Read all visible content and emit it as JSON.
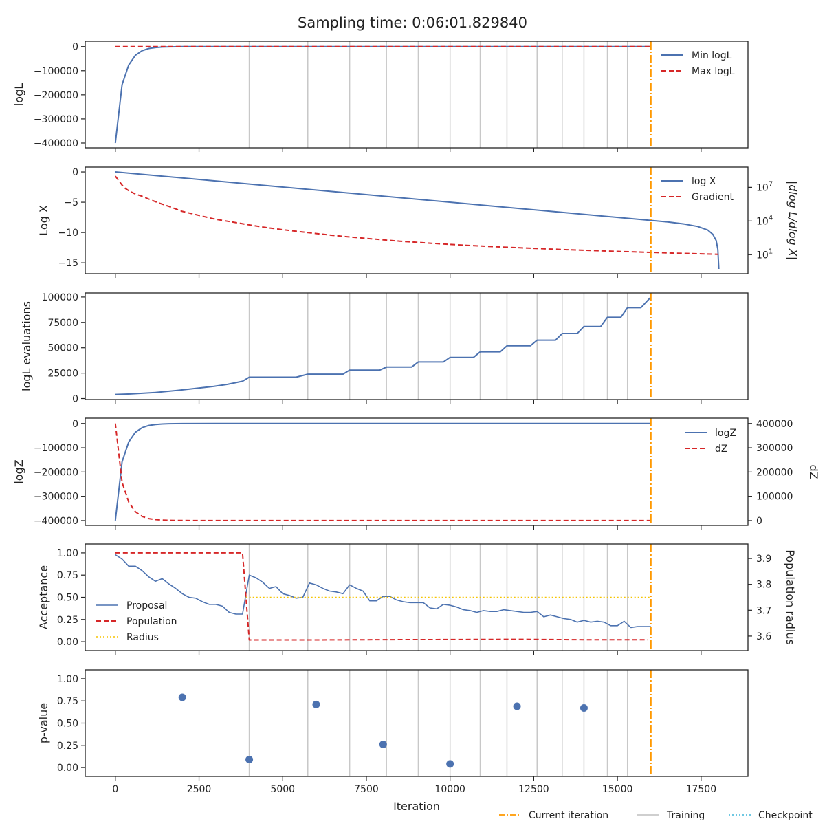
{
  "figure": {
    "title": "Sampling time: 0:06:01.829840",
    "xlabel": "Iteration"
  },
  "colors": {
    "blue": "#4c72b0",
    "red": "#d62728",
    "orange": "#ff9900",
    "yellow": "#f5c400",
    "cyan": "#5bc0de",
    "grey": "#c8c8c8"
  },
  "chart_data": [
    {
      "type": "line",
      "ylabel": "logL",
      "xlim": [
        -900,
        18900
      ],
      "ylim": [
        -420000,
        22000
      ],
      "yticks": [
        0,
        -100000,
        -200000,
        -300000,
        -400000
      ],
      "ytick_labels": [
        "0",
        "−100000",
        "−200000",
        "−300000",
        "−400000"
      ],
      "training_lines": [
        4000,
        5750,
        7000,
        8100,
        9050,
        10000,
        10900,
        11700,
        12600,
        13350,
        14000,
        14700,
        15300
      ],
      "current_iteration": 16000,
      "series": [
        {
          "name": "Min logL",
          "x": [
            0,
            200,
            400,
            600,
            800,
            1000,
            1200,
            1400,
            1600,
            2000,
            3000,
            16000
          ],
          "values": [
            -400000,
            -158000,
            -76000,
            -36000,
            -17000,
            -8000,
            -4000,
            -2000,
            -1000,
            -300,
            0,
            0
          ]
        },
        {
          "name": "Max logL",
          "x": [
            0,
            16000
          ],
          "values": [
            0,
            0
          ]
        }
      ],
      "legend": [
        "Min logL",
        "Max logL"
      ],
      "legend_position": "top-right"
    },
    {
      "type": "line",
      "ylabel": "Log X",
      "ylabel_right": "|dlog L/dlog X|",
      "xlim": [
        -900,
        18900
      ],
      "ylim": [
        -16.8,
        0.8
      ],
      "yticks": [
        0,
        -5,
        -10,
        -15
      ],
      "ytick_labels": [
        "0",
        "−5",
        "−10",
        "−15"
      ],
      "right_log_range": [
        -0.7,
        8.8
      ],
      "right_ticks": [
        {
          "value": 1,
          "base": "10",
          "exp": "1"
        },
        {
          "value": 4,
          "base": "10",
          "exp": "4"
        },
        {
          "value": 7,
          "base": "10",
          "exp": "7"
        }
      ],
      "current_iteration": 16000,
      "series": [
        {
          "name": "log X",
          "x": [
            0,
            16000,
            16500,
            17000,
            17400,
            17700,
            17850,
            17950,
            18000,
            18030
          ],
          "values": [
            0,
            -8.0,
            -8.25,
            -8.6,
            -9.0,
            -9.6,
            -10.3,
            -11.3,
            -12.8,
            -16.0
          ]
        },
        {
          "name": "Gradient",
          "axis": "right_log10",
          "x": [
            0,
            100,
            200,
            300,
            400,
            600,
            800,
            1000,
            1300,
            1600,
            2000,
            2500,
            3000,
            3500,
            4000,
            4500,
            5000,
            5500,
            6000,
            6500,
            7000,
            7500,
            8000,
            8500,
            9000,
            9500,
            10000,
            10500,
            11000,
            11500,
            12000,
            12500,
            13000,
            13500,
            14000,
            14500,
            15000,
            15500,
            16000,
            16500,
            17000,
            17500,
            18000
          ],
          "values": [
            8.0,
            7.6,
            7.2,
            6.9,
            6.7,
            6.4,
            6.2,
            5.95,
            5.6,
            5.3,
            4.85,
            4.5,
            4.15,
            3.9,
            3.65,
            3.42,
            3.22,
            3.05,
            2.88,
            2.72,
            2.58,
            2.45,
            2.32,
            2.2,
            2.1,
            2.0,
            1.92,
            1.83,
            1.76,
            1.69,
            1.62,
            1.56,
            1.5,
            1.44,
            1.39,
            1.34,
            1.29,
            1.24,
            1.2,
            1.15,
            1.11,
            1.07,
            1.03
          ]
        }
      ],
      "legend": [
        "log X",
        "Gradient"
      ],
      "legend_position": "top-right"
    },
    {
      "type": "line",
      "ylabel": "logL evaluations",
      "xlim": [
        -900,
        18900
      ],
      "ylim": [
        -1000,
        104000
      ],
      "yticks": [
        0,
        25000,
        50000,
        75000,
        100000
      ],
      "ytick_labels": [
        "0",
        "25000",
        "50000",
        "75000",
        "100000"
      ],
      "training_lines": [
        4000,
        5750,
        7000,
        8100,
        9050,
        10000,
        10900,
        11700,
        12600,
        13350,
        14000,
        14700,
        15300
      ],
      "current_iteration": 16000,
      "series": [
        {
          "name": "logL evaluations",
          "x": [
            0,
            450,
            1200,
            1850,
            2400,
            2950,
            3350,
            3800,
            4000,
            5400,
            5750,
            6800,
            7000,
            7900,
            8100,
            8850,
            9050,
            9800,
            10000,
            10700,
            10900,
            11500,
            11700,
            12400,
            12600,
            13150,
            13350,
            13800,
            14000,
            14500,
            14700,
            15100,
            15300,
            15700,
            16000
          ],
          "values": [
            4000,
            4500,
            6000,
            8000,
            10000,
            12000,
            14000,
            17000,
            21000,
            21000,
            24000,
            24000,
            28000,
            28000,
            31000,
            31000,
            36000,
            36000,
            40500,
            40500,
            46000,
            46000,
            52000,
            52000,
            57500,
            57500,
            64000,
            64000,
            71000,
            71000,
            80000,
            80000,
            89500,
            89500,
            100000
          ]
        }
      ]
    },
    {
      "type": "line",
      "ylabel": "logZ",
      "ylabel_right": "dZ",
      "xlim": [
        -900,
        18900
      ],
      "ylim": [
        -420000,
        22000
      ],
      "yticks": [
        0,
        -100000,
        -200000,
        -300000,
        -400000
      ],
      "ytick_labels": [
        "0",
        "−100000",
        "−200000",
        "−300000",
        "−400000"
      ],
      "ylim_right": [
        -20000,
        422000
      ],
      "yticks_right": [
        0,
        100000,
        200000,
        300000,
        400000
      ],
      "ytick_labels_right": [
        "0",
        "100000",
        "200000",
        "300000",
        "400000"
      ],
      "current_iteration": 16000,
      "series": [
        {
          "name": "logZ",
          "x": [
            0,
            200,
            400,
            600,
            800,
            1000,
            1200,
            1400,
            1600,
            2000,
            3000,
            16000
          ],
          "values": [
            -400000,
            -158000,
            -76000,
            -36000,
            -17000,
            -8000,
            -4000,
            -2000,
            -1000,
            -300,
            0,
            0
          ]
        },
        {
          "name": "dZ",
          "axis": "right",
          "x": [
            0,
            200,
            400,
            600,
            800,
            1000,
            1200,
            1400,
            1600,
            2000,
            3000,
            16000
          ],
          "values": [
            400000,
            158000,
            76000,
            36000,
            17000,
            8000,
            4000,
            2000,
            1000,
            300,
            0,
            0
          ]
        }
      ],
      "legend": [
        "logZ",
        "dZ"
      ],
      "legend_position": "top-right"
    },
    {
      "type": "line",
      "ylabel": "Acceptance",
      "ylabel_right": "Population radius",
      "xlim": [
        -900,
        18900
      ],
      "ylim": [
        -0.1,
        1.1
      ],
      "yticks": [
        0,
        0.25,
        0.5,
        0.75,
        1.0
      ],
      "ytick_labels": [
        "0.00",
        "0.25",
        "0.50",
        "0.75",
        "1.00"
      ],
      "ylim_right": [
        3.544,
        3.956
      ],
      "yticks_right": [
        3.6,
        3.7,
        3.8,
        3.9
      ],
      "ytick_labels_right": [
        "3.6",
        "3.7",
        "3.8",
        "3.9"
      ],
      "training_lines": [
        4000,
        5750,
        7000,
        8100,
        9050,
        10000,
        10900,
        11700,
        12600,
        13350,
        14000,
        14700,
        15300
      ],
      "current_iteration": 16000,
      "series": [
        {
          "name": "Proposal",
          "x": [
            0,
            200,
            400,
            600,
            800,
            1000,
            1200,
            1400,
            1600,
            1800,
            2000,
            2200,
            2400,
            2600,
            2800,
            3000,
            3200,
            3400,
            3600,
            3800,
            4000,
            4200,
            4400,
            4600,
            4800,
            5000,
            5200,
            5400,
            5600,
            5800,
            6000,
            6200,
            6400,
            6600,
            6800,
            7000,
            7200,
            7400,
            7600,
            7800,
            8000,
            8200,
            8400,
            8600,
            8800,
            9000,
            9200,
            9400,
            9600,
            9800,
            10000,
            10200,
            10400,
            10600,
            10800,
            11000,
            11200,
            11400,
            11600,
            11800,
            12000,
            12200,
            12400,
            12600,
            12800,
            13000,
            13200,
            13400,
            13600,
            13800,
            14000,
            14200,
            14400,
            14600,
            14800,
            15000,
            15200,
            15400,
            15600,
            15800,
            16000
          ],
          "values": [
            0.98,
            0.93,
            0.85,
            0.85,
            0.8,
            0.73,
            0.68,
            0.71,
            0.65,
            0.6,
            0.54,
            0.5,
            0.49,
            0.45,
            0.42,
            0.42,
            0.4,
            0.33,
            0.31,
            0.31,
            0.75,
            0.72,
            0.67,
            0.6,
            0.62,
            0.54,
            0.52,
            0.49,
            0.5,
            0.66,
            0.64,
            0.6,
            0.57,
            0.56,
            0.54,
            0.64,
            0.6,
            0.57,
            0.46,
            0.46,
            0.51,
            0.51,
            0.47,
            0.45,
            0.44,
            0.44,
            0.44,
            0.38,
            0.37,
            0.42,
            0.41,
            0.39,
            0.36,
            0.35,
            0.33,
            0.35,
            0.34,
            0.34,
            0.36,
            0.35,
            0.34,
            0.33,
            0.33,
            0.34,
            0.28,
            0.3,
            0.28,
            0.26,
            0.25,
            0.22,
            0.24,
            0.22,
            0.23,
            0.22,
            0.18,
            0.18,
            0.23,
            0.16,
            0.17,
            0.17,
            0.17
          ]
        },
        {
          "name": "Population",
          "x": [
            0,
            3800,
            4000,
            6000,
            8000,
            10000,
            12000,
            14000,
            15900
          ],
          "values": [
            1.0,
            1.0,
            0.02,
            0.02,
            0.023,
            0.025,
            0.027,
            0.022,
            0.022
          ]
        },
        {
          "name": "Radius",
          "axis": "right",
          "x": [
            3900,
            16000
          ],
          "values": [
            3.75,
            3.75
          ]
        }
      ],
      "legend": [
        "Proposal",
        "Population",
        "Radius"
      ],
      "legend_position": "center-left"
    },
    {
      "type": "scatter",
      "ylabel": "p-value",
      "xlim": [
        -900,
        18900
      ],
      "ylim": [
        -0.1,
        1.1
      ],
      "yticks": [
        0,
        0.25,
        0.5,
        0.75,
        1.0
      ],
      "ytick_labels": [
        "0.00",
        "0.25",
        "0.50",
        "0.75",
        "1.00"
      ],
      "xticks": [
        0,
        2500,
        5000,
        7500,
        10000,
        12500,
        15000,
        17500
      ],
      "xtick_labels": [
        "0",
        "2500",
        "5000",
        "7500",
        "10000",
        "12500",
        "15000",
        "17500"
      ],
      "training_lines": [
        4000,
        5750,
        7000,
        8100,
        9050,
        10000,
        10900,
        11700,
        12600,
        13350,
        14000,
        14700,
        15300
      ],
      "current_iteration": 16000,
      "series": [
        {
          "name": "p-value",
          "x": [
            2000,
            4000,
            6000,
            8000,
            10000,
            12000,
            14000
          ],
          "values": [
            0.79,
            0.09,
            0.71,
            0.26,
            0.04,
            0.69,
            0.67
          ]
        }
      ]
    }
  ],
  "figure_legend": {
    "position": "bottom-right",
    "items": [
      {
        "label": "Current iteration",
        "style": "dashdot",
        "color": "#ff9900"
      },
      {
        "label": "Training",
        "style": "solid",
        "color": "#c8c8c8"
      },
      {
        "label": "Checkpoint",
        "style": "dotted",
        "color": "#5bc0de"
      }
    ]
  }
}
